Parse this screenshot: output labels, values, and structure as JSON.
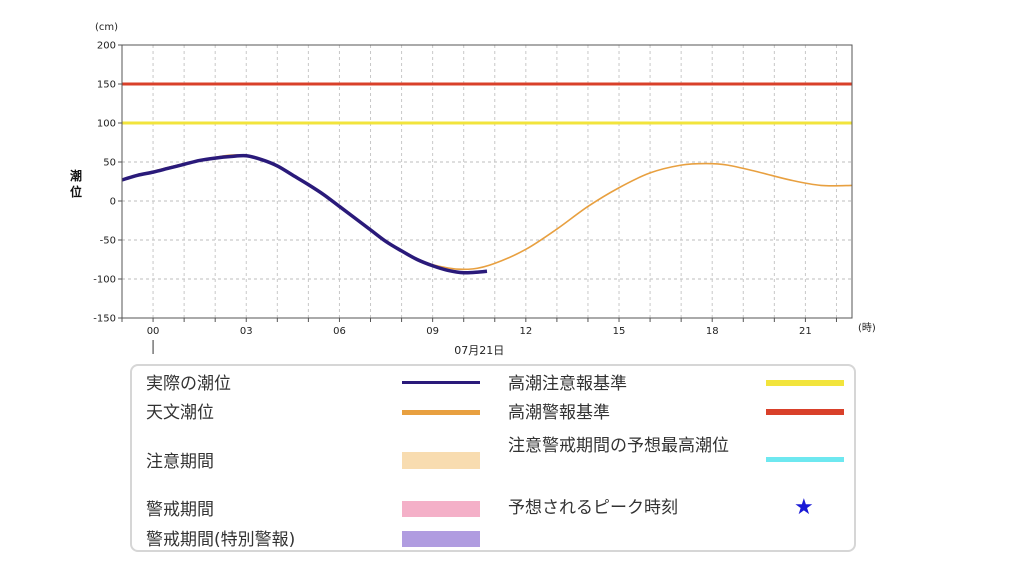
{
  "chart_data": {
    "type": "line",
    "xlabel": "",
    "x_unit": "(時)",
    "date_label": "07月21日",
    "ylabel": "潮位",
    "y_unit": "(cm)",
    "ylim": [
      -150,
      200
    ],
    "yticks": [
      200,
      150,
      100,
      50,
      0,
      -50,
      -100,
      -150
    ],
    "xlim": [
      -1,
      22.5
    ],
    "xticks": [
      {
        "value": 0,
        "label": "00"
      },
      {
        "value": 3,
        "label": "03"
      },
      {
        "value": 6,
        "label": "06"
      },
      {
        "value": 9,
        "label": "09"
      },
      {
        "value": 12,
        "label": "12"
      },
      {
        "value": 15,
        "label": "15"
      },
      {
        "value": 18,
        "label": "18"
      },
      {
        "value": 21,
        "label": "21"
      }
    ],
    "grid": true,
    "series": [
      {
        "name": "天文潮位",
        "color": "#e8a040",
        "x": [
          -1,
          0,
          1,
          2,
          2.7,
          3.5,
          4.5,
          5.5,
          6.5,
          7.5,
          8.5,
          9.5,
          10.3,
          11,
          12,
          13,
          14,
          15,
          16,
          17,
          17.8,
          18.5,
          19.5,
          20.5,
          21.5,
          22.5
        ],
        "y": [
          27,
          38,
          48,
          56,
          59,
          53,
          33,
          8,
          -22,
          -52,
          -75,
          -86,
          -87,
          -80,
          -62,
          -36,
          -7,
          17,
          36,
          46,
          48,
          46,
          37,
          27,
          20,
          20
        ]
      },
      {
        "name": "実際の潮位",
        "color": "#2a1a7a",
        "x": [
          -1,
          -0.5,
          0,
          0.5,
          1,
          1.5,
          2,
          2.5,
          3,
          3.5,
          4,
          4.5,
          5,
          5.5,
          6,
          6.5,
          7,
          7.5,
          8,
          8.5,
          9,
          9.5,
          10,
          10.5,
          10.75
        ],
        "y": [
          27,
          33,
          37,
          42,
          47,
          52,
          55,
          57,
          58,
          53,
          45,
          33,
          21,
          8,
          -7,
          -22,
          -37,
          -52,
          -64,
          -75,
          -83,
          -89,
          -92,
          -91,
          -90
        ]
      },
      {
        "name": "高潮注意報基準",
        "color": "#f2e43c",
        "x": [
          -1,
          22.5
        ],
        "y": [
          100,
          100
        ]
      },
      {
        "name": "高潮警報基準",
        "color": "#d9402a",
        "x": [
          -1,
          22.5
        ],
        "y": [
          150,
          150
        ]
      }
    ]
  },
  "legend": {
    "items": [
      {
        "label": "実際の潮位",
        "color": "#2a1a7a",
        "kind": "line"
      },
      {
        "label": "天文潮位",
        "color": "#e8a040",
        "kind": "line"
      },
      {
        "label": "注意期間",
        "color": "#f8dcb0",
        "kind": "band"
      },
      {
        "label": "警戒期間",
        "color": "#f4b0c8",
        "kind": "band"
      },
      {
        "label": "警戒期間(特別警報)",
        "color": "#b09ce0",
        "kind": "band"
      },
      {
        "label": "高潮注意報基準",
        "color": "#f2e43c",
        "kind": "line"
      },
      {
        "label": "高潮警報基準",
        "color": "#d9402a",
        "kind": "line"
      },
      {
        "label": "注意警戒期間の予想最高潮位",
        "color": "#6ee8f0",
        "kind": "line"
      },
      {
        "label": "予想されるピーク時刻",
        "color": "#1a1ad6",
        "kind": "star",
        "icon": "star-icon"
      }
    ]
  }
}
